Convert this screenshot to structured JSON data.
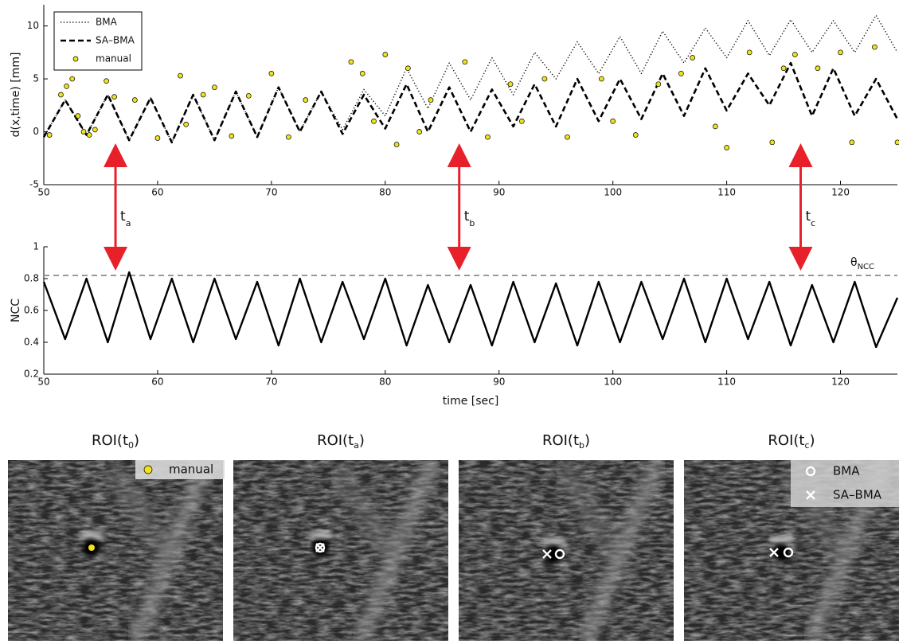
{
  "chart_data": [
    {
      "type": "line",
      "ylabel": "d(x,time) [mm]",
      "xlim": [
        50,
        125
      ],
      "xticks": [
        50,
        60,
        70,
        80,
        90,
        100,
        110,
        120
      ],
      "ylim": [
        -5,
        12
      ],
      "yticks": [
        -5,
        0,
        5,
        10
      ],
      "legend": "upper left",
      "x": [
        50,
        51.875,
        53.75,
        55.625,
        57.5,
        59.375,
        61.25,
        63.125,
        65,
        66.875,
        68.75,
        70.625,
        72.5,
        74.375,
        76.25,
        78.125,
        80,
        81.875,
        83.75,
        85.625,
        87.5,
        89.375,
        91.25,
        93.125,
        95,
        96.875,
        98.75,
        100.625,
        102.5,
        104.375,
        106.25,
        108.125,
        110,
        111.875,
        113.75,
        115.625,
        117.5,
        119.375,
        121.25,
        123.125,
        125
      ],
      "series": [
        {
          "name": "BMA",
          "color": "#000000",
          "style": "dotted",
          "values": [
            -0.5,
            3,
            -0.3,
            3.5,
            -0.8,
            3.2,
            -1,
            3.5,
            -0.8,
            3.8,
            -0.5,
            4.2,
            0,
            3.8,
            0.2,
            4,
            1.5,
            6,
            2.2,
            6.5,
            3,
            7,
            3.5,
            7.5,
            5,
            8.5,
            5.5,
            9,
            5.5,
            9.5,
            6.5,
            9.8,
            7,
            10.5,
            7.2,
            10.6,
            7.5,
            10.5,
            7.5,
            11,
            7.5
          ]
        },
        {
          "name": "SA–BMA",
          "color": "#000000",
          "style": "dashed",
          "values": [
            -0.5,
            3,
            -0.3,
            3.5,
            -0.8,
            3.2,
            -1,
            3.5,
            -0.8,
            3.8,
            -0.5,
            4.2,
            0,
            3.8,
            -0.2,
            3.5,
            0.3,
            4.5,
            0,
            4.2,
            0,
            4,
            0.5,
            4.5,
            0.5,
            5,
            1,
            5,
            1.2,
            5.5,
            1.5,
            6,
            2,
            5.5,
            2.5,
            6.5,
            1.5,
            6,
            1.5,
            5,
            1.2
          ]
        },
        {
          "name": "manual",
          "type": "scatter",
          "color": "#f2e21b",
          "x": [
            50.5,
            51.5,
            52,
            52.5,
            53,
            53.5,
            54,
            54.5,
            55.5,
            56.2,
            58,
            60,
            62,
            62.5,
            64,
            65,
            66.5,
            68,
            70,
            71.5,
            73,
            77,
            78,
            79,
            80,
            81,
            82,
            83,
            84,
            87,
            89,
            91,
            92,
            94,
            96,
            99,
            100,
            102,
            104,
            106,
            107,
            109,
            110,
            112,
            114,
            115,
            116,
            118,
            120,
            121,
            123,
            125
          ],
          "values": [
            -0.3,
            3.5,
            4.3,
            5,
            1.5,
            0,
            -0.3,
            0.2,
            4.8,
            3.3,
            3,
            -0.6,
            5.3,
            0.7,
            3.5,
            4.2,
            -0.4,
            3.4,
            5.5,
            -0.5,
            3,
            6.6,
            5.5,
            1,
            7.3,
            -1.2,
            6,
            0,
            3,
            6.6,
            -0.5,
            4.5,
            1,
            5,
            -0.5,
            5,
            1,
            -0.3,
            4.5,
            5.5,
            7,
            0.5,
            -1.5,
            7.5,
            -1,
            6,
            7.3,
            6,
            7.5,
            -1,
            8,
            -1
          ]
        }
      ],
      "annotations": [
        {
          "x": 56.3,
          "label": "t",
          "sub": "a"
        },
        {
          "x": 86.5,
          "label": "t",
          "sub": "b"
        },
        {
          "x": 116.5,
          "label": "t",
          "sub": "c"
        }
      ]
    },
    {
      "type": "line",
      "xlabel": "time [sec]",
      "ylabel": "NCC",
      "xlim": [
        50,
        125
      ],
      "xticks": [
        50,
        60,
        70,
        80,
        90,
        100,
        110,
        120
      ],
      "ylim": [
        0.2,
        1
      ],
      "yticks": [
        0.2,
        0.4,
        0.6,
        0.8,
        1
      ],
      "x": [
        50,
        51.875,
        53.75,
        55.625,
        57.5,
        59.375,
        61.25,
        63.125,
        65,
        66.875,
        68.75,
        70.625,
        72.5,
        74.375,
        76.25,
        78.125,
        80,
        81.875,
        83.75,
        85.625,
        87.5,
        89.375,
        91.25,
        93.125,
        95,
        96.875,
        98.75,
        100.625,
        102.5,
        104.375,
        106.25,
        108.125,
        110,
        111.875,
        113.75,
        115.625,
        117.5,
        119.375,
        121.25,
        123.125,
        125
      ],
      "series": [
        {
          "color": "#000000",
          "style": "solid",
          "values": [
            0.78,
            0.42,
            0.8,
            0.4,
            0.84,
            0.42,
            0.8,
            0.4,
            0.8,
            0.42,
            0.78,
            0.38,
            0.8,
            0.4,
            0.78,
            0.42,
            0.8,
            0.38,
            0.76,
            0.4,
            0.76,
            0.38,
            0.78,
            0.4,
            0.77,
            0.38,
            0.78,
            0.4,
            0.78,
            0.42,
            0.8,
            0.4,
            0.8,
            0.42,
            0.78,
            0.38,
            0.76,
            0.4,
            0.78,
            0.37,
            0.68
          ]
        }
      ],
      "threshold": {
        "value": 0.82,
        "label": "θ",
        "sub": "NCC",
        "color": "#999999"
      }
    }
  ],
  "panels": [
    {
      "title": {
        "text": "ROI(t",
        "sub": "0",
        "close": ")"
      },
      "legend": [
        "manual"
      ]
    },
    {
      "title": {
        "text": "ROI(t",
        "sub": "a",
        "close": ")"
      },
      "legend": []
    },
    {
      "title": {
        "text": "ROI(t",
        "sub": "b",
        "close": ")"
      },
      "legend": []
    },
    {
      "title": {
        "text": "ROI(t",
        "sub": "c",
        "close": ")"
      },
      "legend": [
        "BMA",
        "SA–BMA"
      ]
    }
  ]
}
